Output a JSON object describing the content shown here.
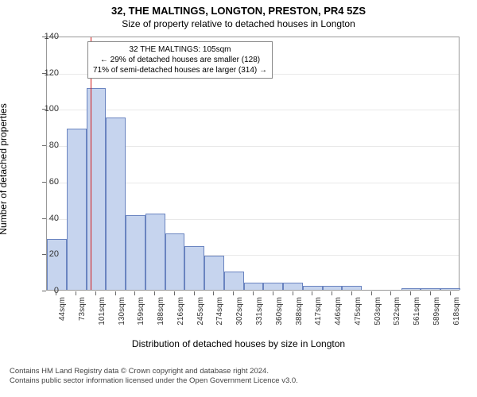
{
  "title_line1": "32, THE MALTINGS, LONGTON, PRESTON, PR4 5ZS",
  "title_line2": "Size of property relative to detached houses in Longton",
  "y_axis_label": "Number of detached properties",
  "x_axis_label": "Distribution of detached houses by size in Longton",
  "chart": {
    "type": "histogram",
    "ylim": [
      0,
      140
    ],
    "ytick_step": 20,
    "yticks": [
      0,
      20,
      40,
      60,
      80,
      100,
      120,
      140
    ],
    "x_categories": [
      "44sqm",
      "73sqm",
      "101sqm",
      "130sqm",
      "159sqm",
      "188sqm",
      "216sqm",
      "245sqm",
      "274sqm",
      "302sqm",
      "331sqm",
      "360sqm",
      "388sqm",
      "417sqm",
      "446sqm",
      "475sqm",
      "503sqm",
      "532sqm",
      "561sqm",
      "589sqm",
      "618sqm"
    ],
    "bar_values": [
      28,
      89,
      111,
      95,
      41,
      42,
      31,
      24,
      19,
      10,
      4,
      4,
      4,
      2,
      2,
      2,
      0,
      0,
      1,
      1,
      1
    ],
    "bar_color": "#c6d4ee",
    "bar_border_color": "#6a84c0",
    "bar_width_ratio": 1.0,
    "grid_color": "#e9e9e9",
    "axis_color": "#999999",
    "background_color": "#ffffff",
    "marker_position_ratio": 0.106,
    "marker_color": "#d11919",
    "label_fontsize": 12,
    "tick_fontsize": 10,
    "title_fontsize": 13
  },
  "info_box": {
    "line1": "32 THE MALTINGS: 105sqm",
    "line2": "← 29% of detached houses are smaller (128)",
    "line3": "71% of semi-detached houses are larger (314) →",
    "left_ratio": 0.1,
    "top_ratio": 0.02
  },
  "attribution": {
    "line1": "Contains HM Land Registry data © Crown copyright and database right 2024.",
    "line2": "Contains public sector information licensed under the Open Government Licence v3.0."
  }
}
